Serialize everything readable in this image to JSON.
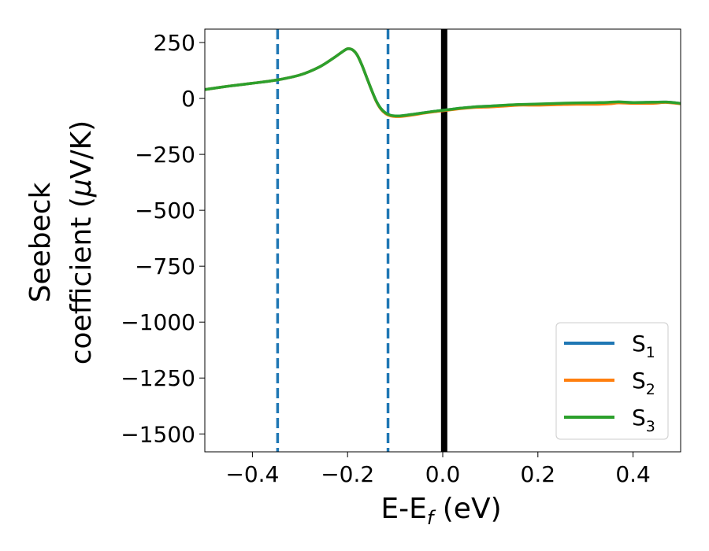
{
  "chart_data": {
    "type": "line",
    "xlabel": "E-E",
    "xlabel_sub": "f",
    "xlabel_unit": " (eV)",
    "ylabel_line1": "Seebeck",
    "ylabel_line2_prefix": "coefficient  (",
    "ylabel_mu": "μ",
    "ylabel_line2_suffix": "V/K)",
    "xlim": [
      -0.5,
      0.5
    ],
    "ylim": [
      -1580,
      310
    ],
    "xticks": [
      -0.4,
      -0.2,
      0.0,
      0.2,
      0.4
    ],
    "xtick_labels": [
      "−0.4",
      "−0.2",
      "0.0",
      "0.2",
      "0.4"
    ],
    "yticks": [
      250,
      0,
      -250,
      -500,
      -750,
      -1000,
      -1250,
      -1500
    ],
    "ytick_labels": [
      "250",
      "0",
      "−250",
      "−500",
      "−750",
      "−1000",
      "−1250",
      "−1500"
    ],
    "grid": false,
    "legend_position": "lower-right",
    "vlines": [
      {
        "x": -0.347,
        "style": "dashed",
        "color": "#1f77b4"
      },
      {
        "x": -0.115,
        "style": "dashed",
        "color": "#1f77b4"
      },
      {
        "x": 0.003,
        "style": "solid",
        "color": "#000000"
      }
    ],
    "x": [
      -0.5,
      -0.45,
      -0.4,
      -0.35,
      -0.3,
      -0.26,
      -0.23,
      -0.21,
      -0.2,
      -0.19,
      -0.18,
      -0.17,
      -0.16,
      -0.15,
      -0.14,
      -0.13,
      -0.12,
      -0.11,
      -0.1,
      -0.09,
      -0.08,
      -0.06,
      -0.04,
      -0.02,
      0.0,
      0.02,
      0.04,
      0.07,
      0.1,
      0.13,
      0.16,
      0.2,
      0.24,
      0.28,
      0.32,
      0.35,
      0.37,
      0.4,
      0.44,
      0.47,
      0.5
    ],
    "series": [
      {
        "name": "S",
        "sub": "1",
        "color": "#1f77b4",
        "values": [
          40,
          55,
          68,
          82,
          105,
          140,
          180,
          210,
          222,
          218,
          195,
          150,
          95,
          40,
          -10,
          -45,
          -65,
          -75,
          -78,
          -78,
          -76,
          -70,
          -64,
          -58,
          -53,
          -48,
          -43,
          -37,
          -34,
          -31,
          -28,
          -26,
          -23,
          -21,
          -20,
          -18,
          -16,
          -18,
          -17,
          -16,
          -22
        ]
      },
      {
        "name": "S",
        "sub": "2",
        "color": "#ff7f0e",
        "values": [
          40,
          55,
          68,
          82,
          105,
          140,
          180,
          210,
          222,
          218,
          195,
          150,
          95,
          40,
          -12,
          -48,
          -68,
          -78,
          -81,
          -81,
          -79,
          -73,
          -66,
          -60,
          -55,
          -50,
          -45,
          -40,
          -38,
          -34,
          -30,
          -30,
          -28,
          -26,
          -26,
          -24,
          -20,
          -22,
          -22,
          -18,
          -24
        ]
      },
      {
        "name": "S",
        "sub": "3",
        "color": "#2ca02c",
        "values": [
          40,
          55,
          68,
          82,
          105,
          140,
          180,
          210,
          222,
          218,
          195,
          150,
          95,
          40,
          -10,
          -45,
          -65,
          -75,
          -78,
          -78,
          -76,
          -70,
          -64,
          -58,
          -53,
          -48,
          -43,
          -37,
          -34,
          -30,
          -27,
          -25,
          -22,
          -20,
          -19,
          -17,
          -15,
          -18,
          -17,
          -16,
          -22
        ]
      }
    ]
  }
}
